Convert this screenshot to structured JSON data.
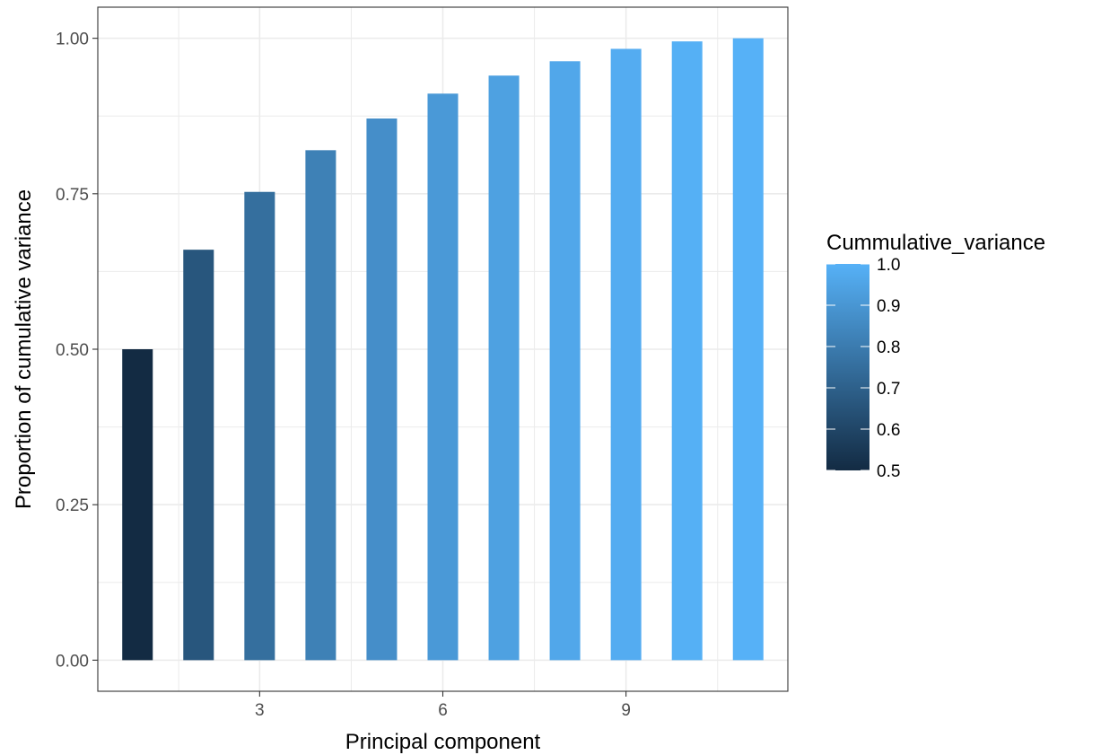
{
  "chart_data": {
    "type": "bar",
    "x": [
      1,
      2,
      3,
      4,
      5,
      6,
      7,
      8,
      9,
      10,
      11
    ],
    "values": [
      0.5,
      0.66,
      0.753,
      0.82,
      0.871,
      0.911,
      0.94,
      0.963,
      0.983,
      0.995,
      1.0
    ],
    "xlabel": "Principal component",
    "ylabel": "Proportion of cumulative variance",
    "x_ticks": [
      3,
      6,
      9
    ],
    "x_tick_labels": [
      "3",
      "6",
      "9"
    ],
    "y_ticks": [
      0,
      0.25,
      0.5,
      0.75,
      1.0
    ],
    "y_tick_labels": [
      "0.00",
      "0.25",
      "0.50",
      "0.75",
      "1.00"
    ],
    "xlim": [
      0.35,
      11.65
    ],
    "ylim": [
      -0.05,
      1.05
    ],
    "grid": true,
    "legend": {
      "title": "Cummulative_variance",
      "position": "right",
      "labels": [
        "0.5",
        "0.6",
        "0.7",
        "0.8",
        "0.9",
        "1.0"
      ],
      "values": [
        0.5,
        0.6,
        0.7,
        0.8,
        0.9,
        1.0
      ],
      "color_low": "#132B43",
      "color_high": "#56B1F7"
    }
  }
}
